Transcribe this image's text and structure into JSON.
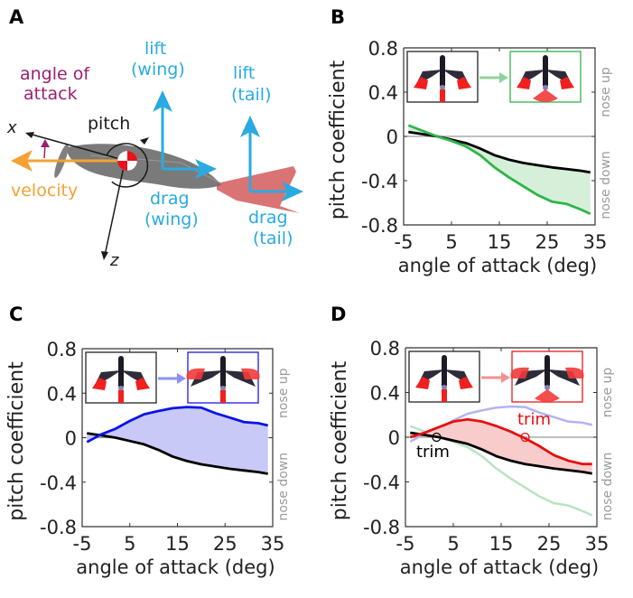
{
  "panel_labels": [
    "A",
    "B",
    "C",
    "D"
  ],
  "diagram": {
    "angle_of_attack_line1": "angle of",
    "angle_of_attack_line2": "attack",
    "pitch": "pitch",
    "x_axis": "x",
    "z_axis": "z",
    "velocity": "velocity",
    "lift_wing_line1": "lift",
    "lift_wing_line2": "(wing)",
    "lift_tail_line1": "lift",
    "lift_tail_line2": "(tail)",
    "drag_wing_line1": "drag",
    "drag_wing_line2": "(wing)",
    "drag_tail_line1": "drag",
    "drag_tail_line2": "(tail)",
    "colors": {
      "angle_of_attack": "#9b1f6e",
      "velocity": "#f5a133",
      "force": "#29aae1",
      "axes": "#1a1a1a",
      "body": "#6e6e6e",
      "tail": "#d45a5a"
    }
  },
  "chart_data": [
    {
      "panel": "B",
      "type": "line",
      "xlabel": "angle of attack (deg)",
      "ylabel": "pitch coefficient",
      "right_label_up": "nose up",
      "right_label_down": "nose down",
      "xlim": [
        -5,
        35
      ],
      "ylim": [
        -0.8,
        0.8
      ],
      "xticks": [
        -5,
        5,
        15,
        25,
        35
      ],
      "yticks": [
        0.8,
        0.4,
        0,
        -0.4,
        -0.8
      ],
      "ytick_labels": [
        "0.8",
        "0.4",
        "0",
        "-0.4",
        "-0.8"
      ],
      "zero_line": true,
      "inset": {
        "from_border": "#222222",
        "to_border": "#2fb44a",
        "arrow_color": "#8fd39a",
        "from_config": "baseline",
        "to_config": "tail spread"
      },
      "x": [
        -4,
        -1,
        2,
        5,
        8,
        11,
        14,
        17,
        20,
        23,
        26,
        29,
        32,
        34
      ],
      "series": [
        {
          "name": "baseline",
          "color": "#000000",
          "values": [
            0.04,
            0.02,
            0.0,
            -0.03,
            -0.06,
            -0.11,
            -0.17,
            -0.21,
            -0.24,
            -0.26,
            -0.28,
            -0.295,
            -0.31,
            -0.325
          ]
        },
        {
          "name": "tail spread",
          "color": "#2fb44a",
          "fill": "#d5efd9",
          "values": [
            0.1,
            0.05,
            0.0,
            -0.04,
            -0.09,
            -0.17,
            -0.28,
            -0.37,
            -0.45,
            -0.53,
            -0.59,
            -0.61,
            -0.66,
            -0.7
          ]
        }
      ]
    },
    {
      "panel": "C",
      "type": "line",
      "xlabel": "angle of attack (deg)",
      "ylabel": "pitch coefficient",
      "right_label_up": "nose up",
      "right_label_down": "nose down",
      "xlim": [
        -5,
        35
      ],
      "ylim": [
        -0.8,
        0.8
      ],
      "xticks": [
        -5,
        5,
        15,
        25,
        35
      ],
      "yticks": [
        0.8,
        0.4,
        0,
        -0.4,
        -0.8
      ],
      "ytick_labels": [
        "0.8",
        "0.4",
        "0",
        "-0.4",
        "-0.8"
      ],
      "zero_line": true,
      "inset": {
        "from_border": "#222222",
        "to_border": "#1a1ae6",
        "arrow_color": "#8f8ff0",
        "from_config": "baseline",
        "to_config": "wing spread"
      },
      "x": [
        -4,
        -1,
        2,
        5,
        8,
        11,
        14,
        17,
        20,
        23,
        26,
        29,
        32,
        34
      ],
      "series": [
        {
          "name": "baseline",
          "color": "#000000",
          "values": [
            0.04,
            0.02,
            0.0,
            -0.03,
            -0.06,
            -0.11,
            -0.17,
            -0.21,
            -0.24,
            -0.26,
            -0.28,
            -0.295,
            -0.31,
            -0.325
          ]
        },
        {
          "name": "wing spread",
          "color": "#0a14e6",
          "fill": "#c9c9f7",
          "values": [
            -0.04,
            0.03,
            0.08,
            0.15,
            0.21,
            0.24,
            0.265,
            0.275,
            0.27,
            0.22,
            0.18,
            0.14,
            0.13,
            0.11
          ]
        }
      ]
    },
    {
      "panel": "D",
      "type": "line",
      "xlabel": "angle of attack (deg)",
      "ylabel": "pitch coefficient",
      "right_label_up": "nose up",
      "right_label_down": "nose down",
      "xlim": [
        -5,
        35
      ],
      "ylim": [
        -0.8,
        0.8
      ],
      "xticks": [
        -5,
        5,
        15,
        25,
        35
      ],
      "yticks": [
        0.8,
        0.4,
        0,
        -0.4,
        -0.8
      ],
      "ytick_labels": [
        "0.8",
        "0.4",
        "0",
        "-0.4",
        "-0.8"
      ],
      "zero_line": true,
      "inset": {
        "from_border": "#222222",
        "to_border": "#e61a1a",
        "arrow_color": "#f59090",
        "from_config": "baseline",
        "to_config": "wing and tail spread"
      },
      "x": [
        -4,
        -1,
        2,
        5,
        8,
        11,
        14,
        17,
        20,
        23,
        26,
        29,
        32,
        34
      ],
      "series": [
        {
          "name": "tail spread (faded)",
          "color": "#b9e3c0",
          "values": [
            0.1,
            0.05,
            0.0,
            -0.04,
            -0.09,
            -0.17,
            -0.28,
            -0.37,
            -0.45,
            -0.53,
            -0.59,
            -0.61,
            -0.66,
            -0.7
          ]
        },
        {
          "name": "wing spread (faded)",
          "color": "#b3b3f3",
          "values": [
            -0.04,
            0.03,
            0.08,
            0.15,
            0.21,
            0.24,
            0.265,
            0.275,
            0.27,
            0.22,
            0.18,
            0.14,
            0.13,
            0.11
          ]
        },
        {
          "name": "baseline",
          "color": "#000000",
          "values": [
            0.04,
            0.02,
            0.0,
            -0.03,
            -0.06,
            -0.11,
            -0.17,
            -0.21,
            -0.24,
            -0.26,
            -0.28,
            -0.295,
            -0.31,
            -0.325
          ]
        },
        {
          "name": "wing and tail spread",
          "color": "#e60f0f",
          "fill": "#f9cccc",
          "values": [
            0.0,
            0.04,
            0.09,
            0.14,
            0.16,
            0.14,
            0.1,
            0.05,
            -0.01,
            -0.08,
            -0.16,
            -0.21,
            -0.24,
            -0.24
          ]
        }
      ],
      "annotations": [
        {
          "text": "trim",
          "x": 1.5,
          "y": 0,
          "color": "#000000",
          "label_position": "below"
        },
        {
          "text": "trim",
          "x": 20,
          "y": 0,
          "color": "#e60f0f",
          "label_position": "above"
        }
      ]
    }
  ]
}
